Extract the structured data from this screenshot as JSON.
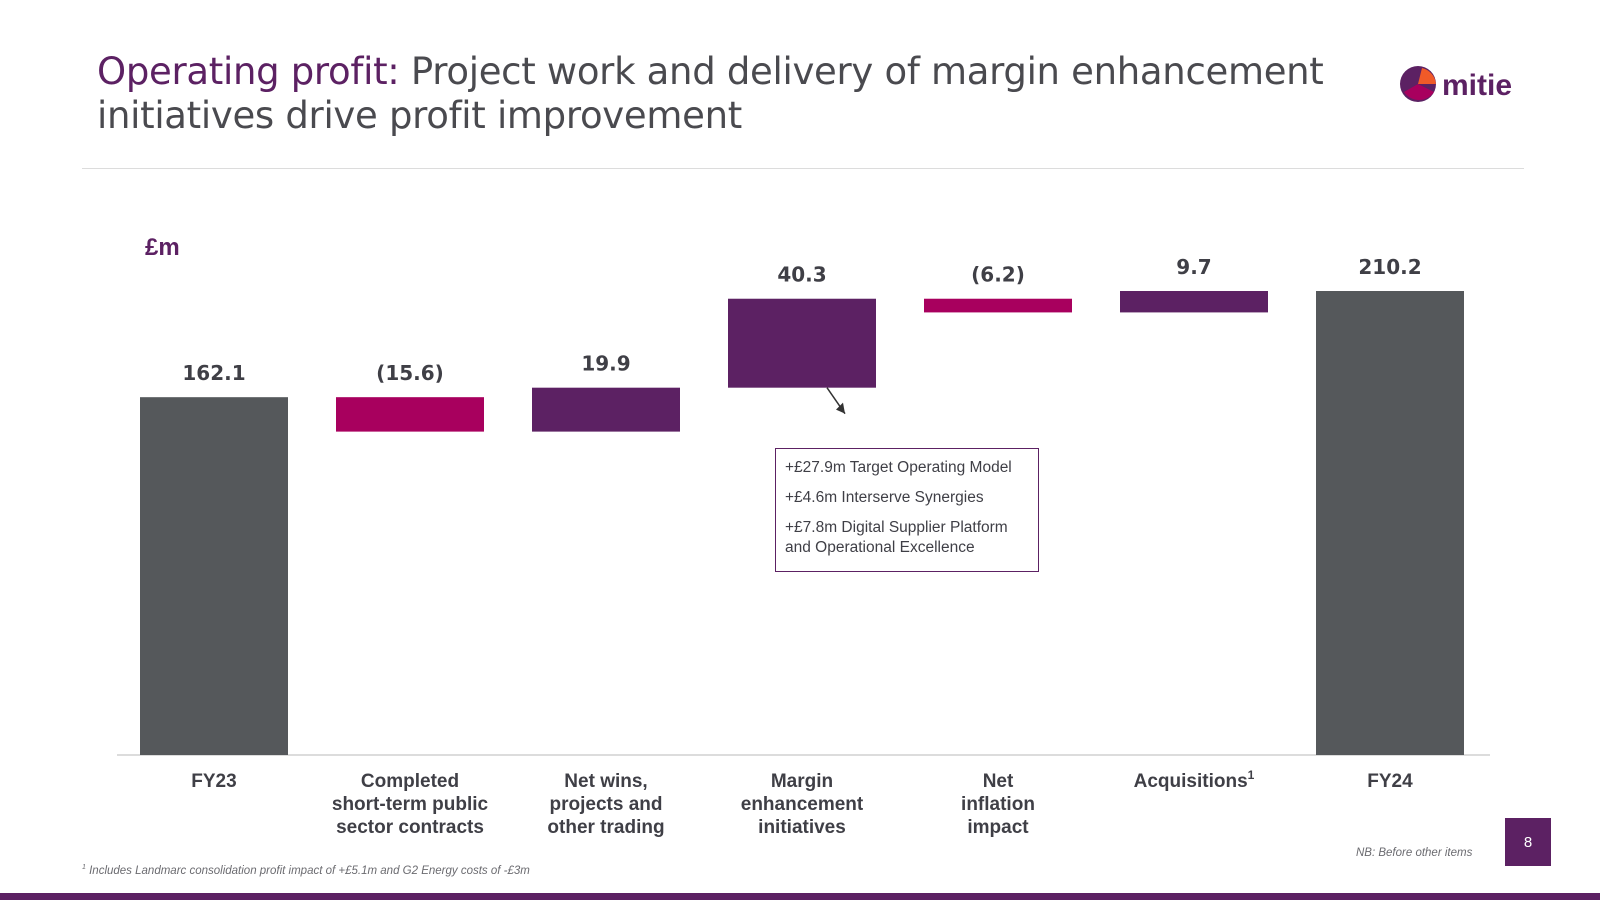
{
  "slide": {
    "title_accent": "Operating profit:",
    "title_rest": " Project work and delivery of margin enhancement initiatives drive profit improvement",
    "logo_text": "mitie",
    "unit_label": "£m",
    "footnote_mark": "1",
    "footnote_text": " Includes Landmarc consolidation profit impact of +£5.1m and G2 Energy costs of -£3m",
    "nb_text": "NB: Before other items",
    "page_number": "8"
  },
  "callout": {
    "lines": [
      "+£27.9m Target Operating Model",
      "+£4.6m Interserve Synergies",
      "+£7.8m Digital Supplier Platform and Operational Excellence"
    ]
  },
  "colors": {
    "purple": "#5c2163",
    "magenta": "#a8005e",
    "grey": "#55585b",
    "text": "#3f3f46"
  },
  "chart_data": {
    "type": "waterfall",
    "title": "",
    "ylabel": "£m",
    "ylim": [
      0,
      210.2
    ],
    "steps": [
      {
        "category_lines": [
          "FY23"
        ],
        "value": 162.1,
        "label": "162.1",
        "kind": "total"
      },
      {
        "category_lines": [
          "Completed",
          "short-term public",
          "sector contracts"
        ],
        "value": -15.6,
        "label": "(15.6)",
        "kind": "decrease"
      },
      {
        "category_lines": [
          "Net wins,",
          "projects and",
          "other trading"
        ],
        "value": 19.9,
        "label": "19.9",
        "kind": "increase"
      },
      {
        "category_lines": [
          "Margin",
          "enhancement",
          "initiatives"
        ],
        "value": 40.3,
        "label": "40.3",
        "kind": "increase"
      },
      {
        "category_lines": [
          "Net",
          "inflation",
          "impact"
        ],
        "value": -6.2,
        "label": "(6.2)",
        "kind": "decrease"
      },
      {
        "category_lines": [
          "Acquisitions"
        ],
        "superscript": "1",
        "value": 9.7,
        "label": "9.7",
        "kind": "increase"
      },
      {
        "category_lines": [
          "FY24"
        ],
        "value": 210.2,
        "label": "210.2",
        "kind": "total"
      }
    ]
  }
}
